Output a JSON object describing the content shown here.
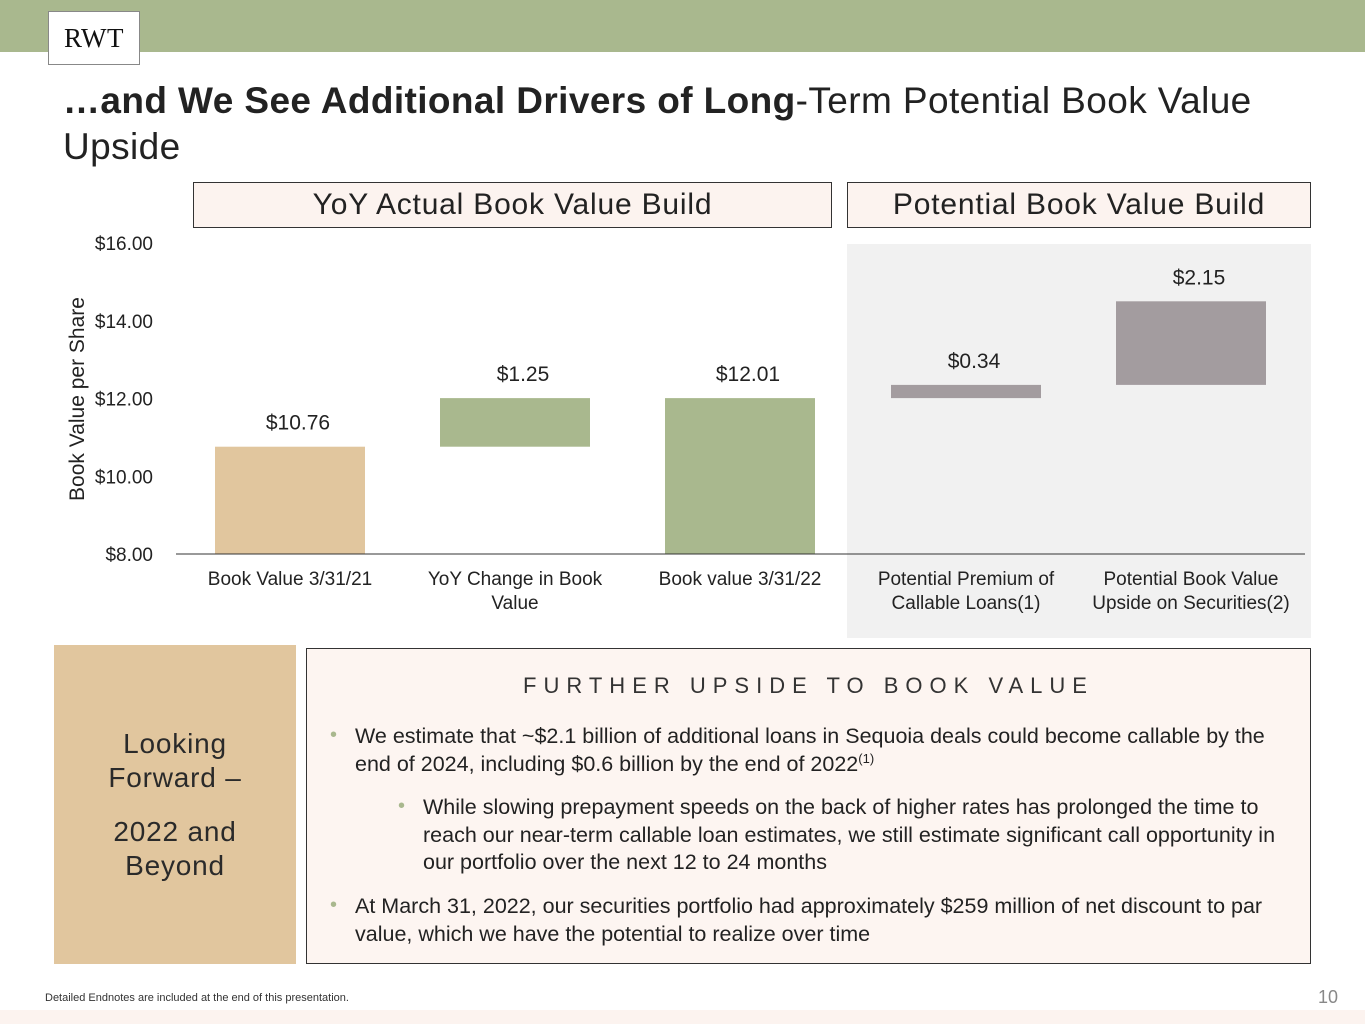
{
  "header": {
    "logo": "RWT"
  },
  "title": {
    "bold": "…and We See Additional Drivers of Long",
    "regular": "-Term Potential Book Value Upside"
  },
  "panels": {
    "actual": "YoY Actual Book Value Build",
    "potential": "Potential Book Value Build"
  },
  "colors": {
    "bar_tan": "#e1c69e",
    "bar_green": "#a9b88e",
    "bar_gray": "#a39c9f",
    "header_green": "#a9b88e",
    "panel_fill": "#fcf3ef"
  },
  "chart_data": {
    "type": "bar",
    "subtype": "waterfall",
    "ylabel": "Book Value per Share",
    "ylim": [
      8,
      16
    ],
    "yticks": [
      {
        "value": 8,
        "label": "$8.00"
      },
      {
        "value": 10,
        "label": "$10.00"
      },
      {
        "value": 12,
        "label": "$12.00"
      },
      {
        "value": 14,
        "label": "$14.00"
      },
      {
        "value": 16,
        "label": "$16.00"
      }
    ],
    "bars": [
      {
        "category": [
          "Book Value 3/31/21"
        ],
        "base": 8,
        "top": 10.76,
        "label": "$10.76",
        "color": "#e1c69e",
        "group": "actual"
      },
      {
        "category": [
          "YoY Change in Book",
          "Value"
        ],
        "base": 10.76,
        "top": 12.01,
        "label": "$1.25",
        "color": "#a9b88e",
        "group": "actual"
      },
      {
        "category": [
          "Book value 3/31/22"
        ],
        "base": 8,
        "top": 12.01,
        "label": "$12.01",
        "color": "#a9b88e",
        "group": "actual"
      },
      {
        "category": [
          "Potential Premium of",
          "Callable Loans(1)"
        ],
        "base": 12.01,
        "top": 12.35,
        "label": "$0.34",
        "color": "#a39c9f",
        "group": "potential"
      },
      {
        "category": [
          "Potential Book Value",
          "Upside on Securities(2)"
        ],
        "base": 12.35,
        "top": 14.5,
        "label": "$2.15",
        "color": "#a39c9f",
        "group": "potential"
      }
    ]
  },
  "looking": {
    "line1": "Looking",
    "line2": "Forward –",
    "line3": "2022 and",
    "line4": "Beyond"
  },
  "upside": {
    "heading": "FURTHER UPSIDE TO BOOK VALUE",
    "bullet1": "We estimate that  ~$2.1 billion of additional loans in Sequoia deals could become callable by the end of 2024, including $0.6 billion by the end of 2022",
    "bullet1_sup": "(1)",
    "bullet1a": "While slowing prepayment speeds on the back of higher rates has prolonged the time to reach our near-term callable loan estimates, we still estimate significant call opportunity in our portfolio over the next 12 to 24 months",
    "bullet2": "At March 31, 2022, our securities portfolio had approximately $259 million of net discount to par value, which we have the potential to realize over time",
    "bullet_glyph": "•"
  },
  "footer": {
    "note": "Detailed Endnotes are included at the end of this presentation.",
    "page": "10"
  }
}
